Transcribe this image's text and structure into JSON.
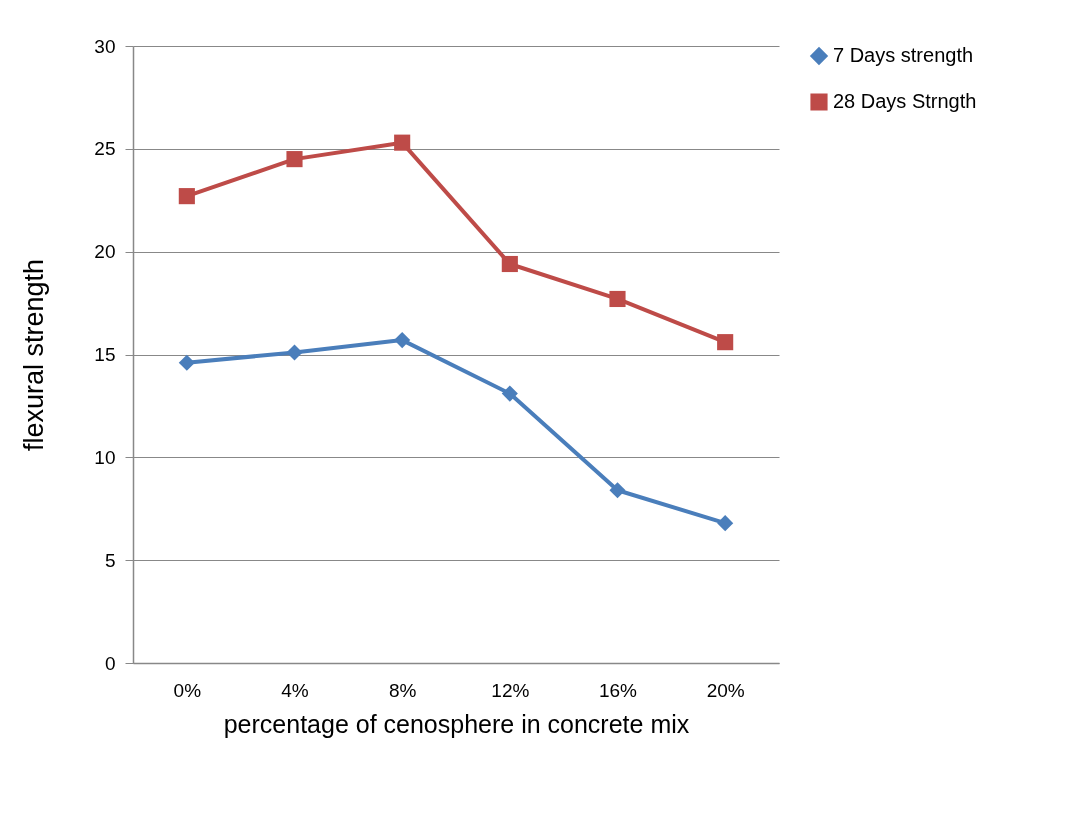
{
  "chart_data": {
    "type": "line",
    "xlabel": "percentage of cenosphere in concrete mix",
    "ylabel": "flexural strength",
    "categories": [
      "0%",
      "4%",
      "8%",
      "12%",
      "16%",
      "20%"
    ],
    "series": [
      {
        "name": "7 Days strength",
        "color": "#4a7ebb",
        "marker": "diamond",
        "values": [
          14.6,
          15.1,
          15.7,
          13.1,
          8.4,
          6.8
        ]
      },
      {
        "name": "28 Days Strngth",
        "color": "#be4b48",
        "marker": "square",
        "values": [
          22.7,
          24.5,
          25.3,
          19.4,
          17.7,
          15.6
        ]
      }
    ],
    "ylim": [
      0,
      30
    ],
    "yticks": [
      0,
      5,
      10,
      15,
      20,
      25,
      30
    ],
    "grid": "y",
    "legend": "right",
    "line_style": "solid"
  }
}
